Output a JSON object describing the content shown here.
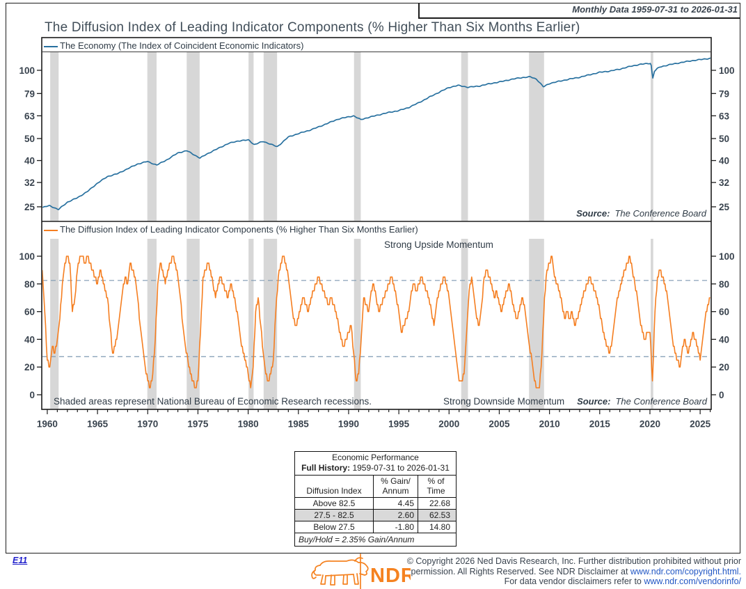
{
  "header": {
    "period_label": "Monthly Data 1959-07-31 to 2026-01-31",
    "title": "The Diffusion Index of Leading Indicator Components (% Higher Than Six Months Earlier)"
  },
  "colors": {
    "economy_line": "#27709f",
    "diffusion_line": "#f57e20",
    "recession_band": "#d7d7d7",
    "threshold_dash": "#7f99b2",
    "frame": "#1c1c1c",
    "text": "#39434e",
    "link": "#2257c4",
    "logo_orange": "#f58220"
  },
  "recessions": [
    [
      1960.29,
      1961.13
    ],
    [
      1969.96,
      1970.88
    ],
    [
      1973.88,
      1975.17
    ],
    [
      1980.04,
      1980.54
    ],
    [
      1981.54,
      1982.88
    ],
    [
      1990.54,
      1991.21
    ],
    [
      2001.21,
      2001.88
    ],
    [
      2007.96,
      2009.46
    ],
    [
      2020.08,
      2020.33
    ]
  ],
  "x_axis": {
    "labeled_years": [
      1960,
      1965,
      1970,
      1975,
      1980,
      1985,
      1990,
      1995,
      2000,
      2005,
      2010,
      2015,
      2020,
      2025
    ],
    "minor_from": 1960,
    "minor_to": 2026,
    "domain": [
      1959.45,
      2026.1
    ]
  },
  "top_panel": {
    "legend": "The Economy (The Index of Coincident Economic Indicators)",
    "source_label": "Source:",
    "source_value": "The Conference Board"
  },
  "bottom_panel": {
    "legend": "The Diffusion Index of Leading Indicator Components (% Higher Than Six Months Earlier)",
    "upper_annotation": "Strong Upside Momentum",
    "lower_annotation": "Strong Downside Momentum",
    "footnote": "Shaded areas represent National Bureau of Economic Research recessions.",
    "source_label": "Source:",
    "source_value": "The Conference Board"
  },
  "chart_data": [
    {
      "type": "line",
      "name": "The Economy (The Index of Coincident Economic Indicators)",
      "yscale": "log",
      "yticks": [
        100,
        79,
        63,
        50,
        40,
        32,
        25
      ],
      "points": [
        [
          1959.5,
          24.8
        ],
        [
          1960.2,
          25.3
        ],
        [
          1960.6,
          24.9
        ],
        [
          1961.1,
          24.3
        ],
        [
          1962,
          26.2
        ],
        [
          1963,
          27.4
        ],
        [
          1964,
          29.2
        ],
        [
          1965,
          31.8
        ],
        [
          1966,
          34.0
        ],
        [
          1967,
          35.0
        ],
        [
          1968,
          36.8
        ],
        [
          1969,
          38.6
        ],
        [
          1969.95,
          39.6
        ],
        [
          1970.9,
          38.2
        ],
        [
          1972,
          40.5
        ],
        [
          1973,
          43.2
        ],
        [
          1973.9,
          44.2
        ],
        [
          1975.2,
          41.0
        ],
        [
          1976,
          43.0
        ],
        [
          1977,
          45.2
        ],
        [
          1978,
          47.5
        ],
        [
          1979,
          48.8
        ],
        [
          1980.05,
          49.3
        ],
        [
          1980.6,
          47.0
        ],
        [
          1981.5,
          48.6
        ],
        [
          1982.9,
          46.0
        ],
        [
          1984,
          50.8
        ],
        [
          1985,
          52.6
        ],
        [
          1986,
          54.2
        ],
        [
          1987,
          56.2
        ],
        [
          1988,
          58.6
        ],
        [
          1989,
          61.0
        ],
        [
          1990.5,
          63.0
        ],
        [
          1991.2,
          60.6
        ],
        [
          1992,
          62.0
        ],
        [
          1993,
          63.6
        ],
        [
          1994,
          65.2
        ],
        [
          1995,
          66.4
        ],
        [
          1996,
          68.6
        ],
        [
          1997,
          72.0
        ],
        [
          1998,
          76.0
        ],
        [
          1999,
          80.0
        ],
        [
          2000,
          84.0
        ],
        [
          2000.9,
          85.8
        ],
        [
          2001.9,
          84.2
        ],
        [
          2003,
          85.2
        ],
        [
          2004,
          87.2
        ],
        [
          2005,
          88.8
        ],
        [
          2006,
          90.8
        ],
        [
          2007,
          92.6
        ],
        [
          2008.1,
          93.6
        ],
        [
          2008.7,
          91.5
        ],
        [
          2009.4,
          84.5
        ],
        [
          2010,
          87.5
        ],
        [
          2011,
          89.5
        ],
        [
          2012,
          91.5
        ],
        [
          2013,
          93.2
        ],
        [
          2014,
          95.6
        ],
        [
          2015,
          98.0
        ],
        [
          2016,
          99.2
        ],
        [
          2017,
          101.2
        ],
        [
          2018,
          104.0
        ],
        [
          2019,
          106.2
        ],
        [
          2020.1,
          107.5
        ],
        [
          2020.28,
          92.0
        ],
        [
          2020.45,
          99.0
        ],
        [
          2020.7,
          101.5
        ],
        [
          2021,
          103.5
        ],
        [
          2022,
          106.0
        ],
        [
          2023,
          108.0
        ],
        [
          2024,
          110.0
        ],
        [
          2025,
          111.5
        ],
        [
          2026.05,
          113.0
        ]
      ]
    },
    {
      "type": "line",
      "name": "The Diffusion Index of Leading Indicator Components (% Higher Than Six Months Earlier)",
      "yscale": "linear",
      "ylim": [
        0,
        100
      ],
      "yticks": [
        100,
        80,
        60,
        40,
        20,
        0
      ],
      "thresholds": [
        82.5,
        27.5
      ],
      "start_year": 1959.5,
      "step_years": 0.25,
      "values": [
        90,
        60,
        25,
        20,
        35,
        30,
        40,
        55,
        80,
        95,
        100,
        95,
        60,
        70,
        90,
        100,
        100,
        95,
        100,
        95,
        90,
        85,
        80,
        90,
        85,
        75,
        70,
        50,
        30,
        35,
        45,
        60,
        75,
        85,
        80,
        95,
        90,
        85,
        70,
        50,
        35,
        20,
        10,
        5,
        15,
        40,
        80,
        95,
        90,
        80,
        90,
        95,
        100,
        95,
        85,
        70,
        50,
        35,
        25,
        15,
        10,
        5,
        10,
        45,
        85,
        90,
        95,
        90,
        80,
        70,
        80,
        85,
        80,
        75,
        70,
        80,
        75,
        65,
        55,
        40,
        30,
        25,
        15,
        5,
        20,
        60,
        70,
        50,
        30,
        15,
        10,
        15,
        25,
        60,
        85,
        95,
        100,
        95,
        85,
        70,
        55,
        50,
        55,
        65,
        70,
        65,
        60,
        70,
        75,
        80,
        85,
        80,
        75,
        70,
        65,
        70,
        65,
        60,
        50,
        40,
        35,
        40,
        45,
        50,
        30,
        10,
        15,
        40,
        70,
        65,
        60,
        75,
        80,
        70,
        60,
        65,
        70,
        75,
        80,
        85,
        80,
        70,
        60,
        45,
        50,
        55,
        60,
        75,
        80,
        75,
        80,
        85,
        80,
        75,
        70,
        60,
        50,
        65,
        75,
        80,
        85,
        80,
        70,
        55,
        40,
        25,
        10,
        10,
        15,
        45,
        75,
        85,
        70,
        55,
        50,
        65,
        85,
        90,
        85,
        80,
        70,
        75,
        65,
        60,
        70,
        75,
        80,
        70,
        60,
        55,
        60,
        70,
        65,
        50,
        35,
        25,
        10,
        5,
        5,
        30,
        70,
        90,
        95,
        100,
        85,
        80,
        75,
        65,
        55,
        60,
        55,
        60,
        50,
        55,
        60,
        70,
        75,
        80,
        85,
        80,
        75,
        70,
        60,
        50,
        40,
        35,
        30,
        40,
        55,
        70,
        75,
        85,
        90,
        95,
        100,
        90,
        80,
        70,
        55,
        45,
        40,
        45,
        45,
        10,
        60,
        85,
        90,
        85,
        80,
        70,
        55,
        40,
        30,
        25,
        20,
        35,
        40,
        30,
        35,
        45,
        40,
        35,
        25,
        40,
        55,
        65,
        70
      ]
    }
  ],
  "table": {
    "title": "Economic Performance",
    "subtitle_label": "Full History:",
    "subtitle_value": "1959-07-31 to 2026-01-31",
    "label_header": "Diffusion Index",
    "gain_header_1": "% Gain/",
    "gain_header_2": "Annum",
    "time_header_1": "% of",
    "time_header_2": "Time",
    "rows": [
      {
        "label": "Above 82.5",
        "gain": "4.45",
        "time": "22.68"
      },
      {
        "label": "27.5 - 82.5",
        "gain": "2.60",
        "time": "62.53"
      },
      {
        "label": "Below 27.5",
        "gain": "-1.80",
        "time": "14.80"
      }
    ],
    "footnote": "Buy/Hold = 2.35% Gain/Annum"
  },
  "footer": {
    "e11": "E11",
    "logo_text": "NDR",
    "copy_line1": "© Copyright 2026 Ned Davis Research, Inc. Further distribution prohibited without prior",
    "copy_line2_pre": "permission. All Rights Reserved. See NDR Disclaimer at ",
    "copy_line2_link": "www.ndr.com/copyright.html.",
    "copy_line3_pre": "For data vendor disclaimers refer to ",
    "copy_line3_link": "www.ndr.com/vendorinfo/"
  }
}
